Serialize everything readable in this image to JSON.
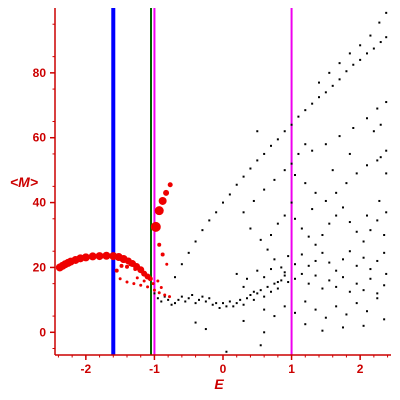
{
  "chart_data": {
    "type": "scatter",
    "xlabel": "E",
    "ylabel": "<M>",
    "xlim": [
      -2.45,
      2.45
    ],
    "ylim": [
      -7,
      100
    ],
    "x_ticks": [
      -2,
      -1,
      0,
      1,
      2
    ],
    "x_tick_labels": [
      "-2",
      "-1",
      "0",
      "1",
      "2"
    ],
    "y_ticks": [
      0,
      20,
      40,
      60,
      80
    ],
    "y_tick_labels": [
      "0",
      "20",
      "40",
      "60",
      "80"
    ],
    "grid": false,
    "colors": {
      "axis": "#cc0000",
      "red_points": "#ee0000",
      "black_points": "#000000"
    },
    "vertical_lines": [
      {
        "x": -1.6,
        "color": "#0000ff",
        "width": 4
      },
      {
        "x": -1.05,
        "color": "#006600",
        "width": 2
      },
      {
        "x": -1.0,
        "color": "#ee00ee",
        "width": 2
      },
      {
        "x": 1.0,
        "color": "#ee00ee",
        "width": 2
      }
    ],
    "red_points": [
      {
        "x": -2.38,
        "y": 20.0,
        "r": 4
      },
      {
        "x": -2.34,
        "y": 20.5,
        "r": 4
      },
      {
        "x": -2.3,
        "y": 21.0,
        "r": 4
      },
      {
        "x": -2.26,
        "y": 21.4,
        "r": 4
      },
      {
        "x": -2.22,
        "y": 21.8,
        "r": 4
      },
      {
        "x": -2.15,
        "y": 22.3,
        "r": 4
      },
      {
        "x": -2.08,
        "y": 22.8,
        "r": 4
      },
      {
        "x": -2.0,
        "y": 23.1,
        "r": 4
      },
      {
        "x": -1.9,
        "y": 23.4,
        "r": 4
      },
      {
        "x": -1.8,
        "y": 23.5,
        "r": 4
      },
      {
        "x": -1.7,
        "y": 23.6,
        "r": 4
      },
      {
        "x": -1.6,
        "y": 23.5,
        "r": 4
      },
      {
        "x": -1.52,
        "y": 23.2,
        "r": 4
      },
      {
        "x": -1.45,
        "y": 22.6,
        "r": 4
      },
      {
        "x": -1.38,
        "y": 22.0,
        "r": 3.5
      },
      {
        "x": -1.32,
        "y": 21.2,
        "r": 3.5
      },
      {
        "x": -1.26,
        "y": 20.3,
        "r": 3.5
      },
      {
        "x": -1.2,
        "y": 19.3,
        "r": 3.5
      },
      {
        "x": -1.15,
        "y": 18.1,
        "r": 3
      },
      {
        "x": -1.1,
        "y": 17.2,
        "r": 3
      },
      {
        "x": -1.06,
        "y": 16.5,
        "r": 2.5
      },
      {
        "x": -0.98,
        "y": 32.5,
        "r": 5
      },
      {
        "x": -0.93,
        "y": 37.5,
        "r": 4.5
      },
      {
        "x": -0.88,
        "y": 40.5,
        "r": 4
      },
      {
        "x": -0.83,
        "y": 43.0,
        "r": 3
      },
      {
        "x": -0.77,
        "y": 45.5,
        "r": 2.5
      },
      {
        "x": -0.93,
        "y": 27.0,
        "r": 2
      },
      {
        "x": -0.88,
        "y": 24.0,
        "r": 2
      },
      {
        "x": -0.82,
        "y": 21.0,
        "r": 1.5
      },
      {
        "x": -1.48,
        "y": 20.5,
        "r": 2
      },
      {
        "x": -1.4,
        "y": 20.2,
        "r": 2
      },
      {
        "x": -1.55,
        "y": 19.0,
        "r": 2
      },
      {
        "x": -1.5,
        "y": 16.5,
        "r": 1.5
      },
      {
        "x": -1.4,
        "y": 15.5,
        "r": 1.5
      },
      {
        "x": -1.3,
        "y": 15.0,
        "r": 1.5
      },
      {
        "x": -1.2,
        "y": 14.5,
        "r": 1.5
      },
      {
        "x": -1.1,
        "y": 14.0,
        "r": 1.5
      },
      {
        "x": -1.0,
        "y": 13.0,
        "r": 1.5
      },
      {
        "x": -0.93,
        "y": 12.2,
        "r": 1.5
      },
      {
        "x": -0.85,
        "y": 11.5,
        "r": 1.5
      },
      {
        "x": -0.78,
        "y": 11.0,
        "r": 1.5
      },
      {
        "x": -1.25,
        "y": 16.8,
        "r": 1.5
      },
      {
        "x": -1.15,
        "y": 15.8,
        "r": 1.5
      },
      {
        "x": -1.02,
        "y": 15.0,
        "r": 1.5
      },
      {
        "x": -0.95,
        "y": 15.8,
        "r": 1.5
      },
      {
        "x": -0.9,
        "y": 13.8,
        "r": 1.5
      },
      {
        "x": -1.45,
        "y": 22.0,
        "r": 2
      },
      {
        "x": -1.35,
        "y": 21.0,
        "r": 2
      },
      {
        "x": -1.28,
        "y": 19.5,
        "r": 2
      }
    ],
    "black_points": [
      {
        "x": -1.0,
        "y": 12.0
      },
      {
        "x": -0.95,
        "y": 10.5
      },
      {
        "x": -0.9,
        "y": 9.5
      },
      {
        "x": -0.85,
        "y": 11.0
      },
      {
        "x": -0.8,
        "y": 10.0
      },
      {
        "x": -0.75,
        "y": 8.5
      },
      {
        "x": -0.7,
        "y": 9.0
      },
      {
        "x": -0.65,
        "y": 10.0
      },
      {
        "x": -0.6,
        "y": 11.0
      },
      {
        "x": -0.55,
        "y": 9.5
      },
      {
        "x": -0.5,
        "y": 10.5
      },
      {
        "x": -0.45,
        "y": 11.5
      },
      {
        "x": -0.4,
        "y": 9.0
      },
      {
        "x": -0.35,
        "y": 10.0
      },
      {
        "x": -0.3,
        "y": 11.0
      },
      {
        "x": -0.25,
        "y": 9.5
      },
      {
        "x": -0.2,
        "y": 10.5
      },
      {
        "x": -0.15,
        "y": 8.5
      },
      {
        "x": -0.1,
        "y": 9.0
      },
      {
        "x": -0.05,
        "y": 7.5
      },
      {
        "x": 0.0,
        "y": 9.0
      },
      {
        "x": 0.05,
        "y": 8.0
      },
      {
        "x": 0.1,
        "y": 9.5
      },
      {
        "x": 0.15,
        "y": 8.0
      },
      {
        "x": 0.2,
        "y": 9.0
      },
      {
        "x": 0.25,
        "y": 10.0
      },
      {
        "x": 0.3,
        "y": 8.5
      },
      {
        "x": 0.35,
        "y": 10.5
      },
      {
        "x": 0.4,
        "y": 11.5
      },
      {
        "x": 0.45,
        "y": 10.0
      },
      {
        "x": 0.5,
        "y": 12.0
      },
      {
        "x": 0.55,
        "y": 13.0
      },
      {
        "x": 0.6,
        "y": 11.0
      },
      {
        "x": 0.65,
        "y": 14.0
      },
      {
        "x": 0.7,
        "y": 12.5
      },
      {
        "x": 0.75,
        "y": 15.0
      },
      {
        "x": 0.8,
        "y": 13.5
      },
      {
        "x": 0.85,
        "y": 16.0
      },
      {
        "x": 0.9,
        "y": 17.5
      },
      {
        "x": 0.95,
        "y": 15.5
      },
      {
        "x": -0.7,
        "y": 17.0
      },
      {
        "x": -0.6,
        "y": 21.0
      },
      {
        "x": -0.5,
        "y": 24.5
      },
      {
        "x": -0.4,
        "y": 28.0
      },
      {
        "x": -0.3,
        "y": 31.5
      },
      {
        "x": -0.2,
        "y": 34.5
      },
      {
        "x": -0.1,
        "y": 37.0
      },
      {
        "x": 0.0,
        "y": 40.0
      },
      {
        "x": 0.1,
        "y": 42.5
      },
      {
        "x": 0.2,
        "y": 45.5
      },
      {
        "x": 0.3,
        "y": 48.0
      },
      {
        "x": 0.4,
        "y": 50.5
      },
      {
        "x": 0.5,
        "y": 53.0
      },
      {
        "x": 0.6,
        "y": 55.0
      },
      {
        "x": 0.7,
        "y": 57.5
      },
      {
        "x": 0.8,
        "y": 59.5
      },
      {
        "x": 0.9,
        "y": 62.0
      },
      {
        "x": 1.0,
        "y": 64.0
      },
      {
        "x": 1.1,
        "y": 66.5
      },
      {
        "x": 1.2,
        "y": 68.5
      },
      {
        "x": 1.3,
        "y": 70.5
      },
      {
        "x": 1.4,
        "y": 72.5
      },
      {
        "x": 1.5,
        "y": 74.0
      },
      {
        "x": 1.6,
        "y": 76.0
      },
      {
        "x": 1.7,
        "y": 78.0
      },
      {
        "x": 1.8,
        "y": 80.5
      },
      {
        "x": 1.9,
        "y": 82.5
      },
      {
        "x": 2.0,
        "y": 84.0
      },
      {
        "x": 2.1,
        "y": 86.0
      },
      {
        "x": 2.2,
        "y": 87.5
      },
      {
        "x": 2.3,
        "y": 89.5
      },
      {
        "x": 2.38,
        "y": 91.0
      },
      {
        "x": 1.4,
        "y": 77.0
      },
      {
        "x": 1.55,
        "y": 80.0
      },
      {
        "x": 1.7,
        "y": 83.0
      },
      {
        "x": 1.85,
        "y": 86.0
      },
      {
        "x": 2.0,
        "y": 88.5
      },
      {
        "x": 2.15,
        "y": 91.5
      },
      {
        "x": 2.28,
        "y": 95.5
      },
      {
        "x": 2.38,
        "y": 98.5
      },
      {
        "x": 1.1,
        "y": 55.0
      },
      {
        "x": 1.3,
        "y": 56.0
      },
      {
        "x": 1.5,
        "y": 58.0
      },
      {
        "x": 1.7,
        "y": 60.5
      },
      {
        "x": 1.9,
        "y": 63.0
      },
      {
        "x": 2.1,
        "y": 66.0
      },
      {
        "x": 2.25,
        "y": 69.0
      },
      {
        "x": 2.38,
        "y": 71.0
      },
      {
        "x": 2.2,
        "y": 62.0
      },
      {
        "x": 2.3,
        "y": 64.0
      },
      {
        "x": 2.38,
        "y": 56.0
      },
      {
        "x": 2.3,
        "y": 54.0
      },
      {
        "x": 0.3,
        "y": 37.0
      },
      {
        "x": 0.45,
        "y": 40.5
      },
      {
        "x": 0.6,
        "y": 44.0
      },
      {
        "x": 0.75,
        "y": 47.0
      },
      {
        "x": 0.9,
        "y": 50.0
      },
      {
        "x": 1.05,
        "y": 48.5
      },
      {
        "x": 1.2,
        "y": 46.0
      },
      {
        "x": 1.35,
        "y": 43.0
      },
      {
        "x": 1.5,
        "y": 40.5
      },
      {
        "x": 1.65,
        "y": 43.0
      },
      {
        "x": 1.8,
        "y": 46.0
      },
      {
        "x": 1.95,
        "y": 49.0
      },
      {
        "x": 2.1,
        "y": 51.5
      },
      {
        "x": 2.25,
        "y": 53.0
      },
      {
        "x": 2.38,
        "y": 49.0
      },
      {
        "x": 0.7,
        "y": 30.0
      },
      {
        "x": 0.8,
        "y": 33.5
      },
      {
        "x": 0.9,
        "y": 36.0
      },
      {
        "x": 1.05,
        "y": 35.0
      },
      {
        "x": 1.15,
        "y": 32.0
      },
      {
        "x": 1.25,
        "y": 29.5
      },
      {
        "x": 1.35,
        "y": 27.0
      },
      {
        "x": 1.45,
        "y": 30.0
      },
      {
        "x": 1.55,
        "y": 33.5
      },
      {
        "x": 1.65,
        "y": 36.0
      },
      {
        "x": 1.75,
        "y": 38.5
      },
      {
        "x": 1.85,
        "y": 34.0
      },
      {
        "x": 1.95,
        "y": 31.0
      },
      {
        "x": 2.05,
        "y": 28.0
      },
      {
        "x": 2.15,
        "y": 31.5
      },
      {
        "x": 2.25,
        "y": 34.5
      },
      {
        "x": 2.35,
        "y": 30.0
      },
      {
        "x": 2.38,
        "y": 37.0
      },
      {
        "x": 2.1,
        "y": 36.0
      },
      {
        "x": 2.28,
        "y": 40.5
      },
      {
        "x": 0.55,
        "y": 28.5
      },
      {
        "x": 0.65,
        "y": 25.5
      },
      {
        "x": 0.75,
        "y": 22.5
      },
      {
        "x": 0.85,
        "y": 20.0
      },
      {
        "x": 0.95,
        "y": 23.5
      },
      {
        "x": 1.05,
        "y": 21.0
      },
      {
        "x": 1.15,
        "y": 24.0
      },
      {
        "x": 1.25,
        "y": 20.5
      },
      {
        "x": 1.35,
        "y": 22.0
      },
      {
        "x": 1.45,
        "y": 24.5
      },
      {
        "x": 1.55,
        "y": 21.5
      },
      {
        "x": 1.65,
        "y": 19.0
      },
      {
        "x": 1.75,
        "y": 22.5
      },
      {
        "x": 1.85,
        "y": 25.0
      },
      {
        "x": 1.95,
        "y": 20.5
      },
      {
        "x": 2.05,
        "y": 23.0
      },
      {
        "x": 2.15,
        "y": 19.5
      },
      {
        "x": 2.25,
        "y": 22.0
      },
      {
        "x": 2.35,
        "y": 24.5
      },
      {
        "x": 2.38,
        "y": 18.0
      },
      {
        "x": 0.2,
        "y": 18.0
      },
      {
        "x": 0.35,
        "y": 16.5
      },
      {
        "x": 0.5,
        "y": 19.0
      },
      {
        "x": 0.6,
        "y": 17.0
      },
      {
        "x": 0.7,
        "y": 19.5
      },
      {
        "x": 0.8,
        "y": 15.5
      },
      {
        "x": 0.9,
        "y": 18.5
      },
      {
        "x": 1.05,
        "y": 16.5
      },
      {
        "x": 1.15,
        "y": 18.0
      },
      {
        "x": 1.25,
        "y": 15.0
      },
      {
        "x": 1.35,
        "y": 17.5
      },
      {
        "x": 1.45,
        "y": 13.5
      },
      {
        "x": 1.55,
        "y": 16.0
      },
      {
        "x": 1.65,
        "y": 14.0
      },
      {
        "x": 1.75,
        "y": 17.0
      },
      {
        "x": 1.85,
        "y": 12.5
      },
      {
        "x": 1.95,
        "y": 15.0
      },
      {
        "x": 2.05,
        "y": 13.0
      },
      {
        "x": 2.15,
        "y": 16.5
      },
      {
        "x": 2.25,
        "y": 12.0
      },
      {
        "x": 2.35,
        "y": 14.5
      },
      {
        "x": 0.3,
        "y": 14.0
      },
      {
        "x": 0.45,
        "y": 12.5
      },
      {
        "x": 0.6,
        "y": 7.0
      },
      {
        "x": 0.75,
        "y": 5.0
      },
      {
        "x": 0.9,
        "y": 8.0
      },
      {
        "x": 1.05,
        "y": 6.0
      },
      {
        "x": 1.2,
        "y": 9.5
      },
      {
        "x": 1.35,
        "y": 7.0
      },
      {
        "x": 1.5,
        "y": 4.5
      },
      {
        "x": 1.65,
        "y": 8.0
      },
      {
        "x": 1.8,
        "y": 5.5
      },
      {
        "x": 1.95,
        "y": 9.0
      },
      {
        "x": 2.1,
        "y": 6.5
      },
      {
        "x": 2.25,
        "y": 10.5
      },
      {
        "x": 2.35,
        "y": 4.0
      },
      {
        "x": -0.25,
        "y": 1.0
      },
      {
        "x": 0.05,
        "y": -6.0
      },
      {
        "x": 0.55,
        "y": -4.0
      },
      {
        "x": 1.45,
        "y": 0.5
      },
      {
        "x": 2.05,
        "y": 2.0
      },
      {
        "x": 0.6,
        "y": 0.0
      },
      {
        "x": 1.2,
        "y": 2.5
      },
      {
        "x": -0.4,
        "y": 3.0
      },
      {
        "x": 0.3,
        "y": 3.5
      },
      {
        "x": 1.75,
        "y": 1.5
      },
      {
        "x": 1.0,
        "y": 52.0
      },
      {
        "x": 0.5,
        "y": 62.0
      },
      {
        "x": 1.0,
        "y": 40.0
      },
      {
        "x": 1.2,
        "y": 58.0
      },
      {
        "x": 0.4,
        "y": 32.0
      },
      {
        "x": 1.6,
        "y": 50.0
      },
      {
        "x": 1.85,
        "y": 55.0
      },
      {
        "x": 1.3,
        "y": 38.0
      }
    ]
  }
}
